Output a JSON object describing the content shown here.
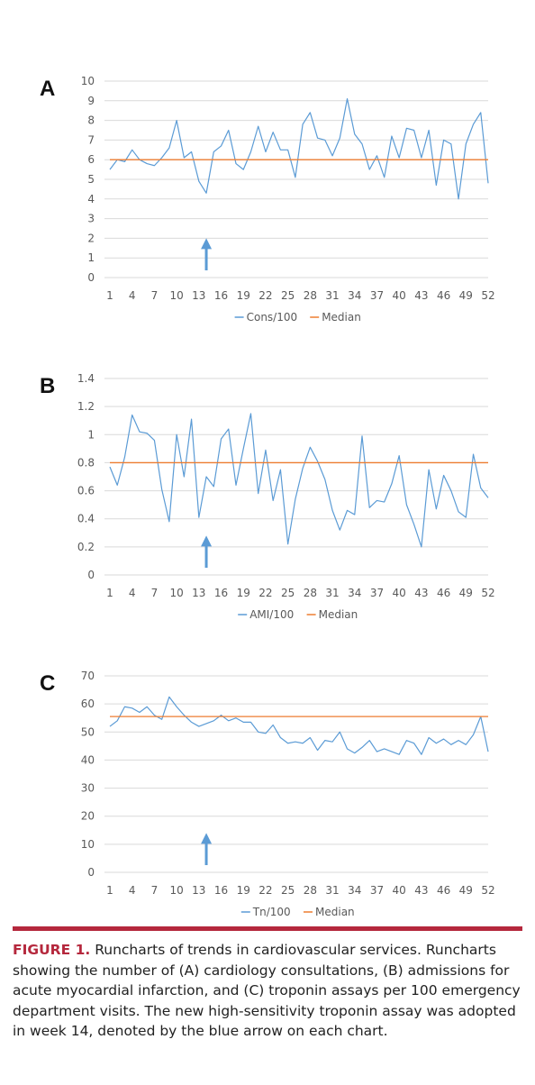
{
  "panels": [
    {
      "letter": "A",
      "chart_data": {
        "type": "line",
        "ylim": [
          0,
          10
        ],
        "yticks": [
          "0",
          "1",
          "2",
          "3",
          "4",
          "5",
          "6",
          "7",
          "8",
          "9",
          "10"
        ],
        "xtick_labels": [
          "1",
          "4",
          "7",
          "10",
          "13",
          "16",
          "19",
          "22",
          "25",
          "28",
          "31",
          "34",
          "37",
          "40",
          "43",
          "46",
          "49",
          "52"
        ],
        "x": [
          1,
          2,
          3,
          4,
          5,
          6,
          7,
          8,
          9,
          10,
          11,
          12,
          13,
          14,
          15,
          16,
          17,
          18,
          19,
          20,
          21,
          22,
          23,
          24,
          25,
          26,
          27,
          28,
          29,
          30,
          31,
          32,
          33,
          34,
          35,
          36,
          37,
          38,
          39,
          40,
          41,
          42,
          43,
          44,
          45,
          46,
          47,
          48,
          49,
          50,
          51,
          52
        ],
        "series": [
          {
            "name": "Cons/100",
            "color": "#5b9bd5",
            "values": [
              5.5,
              6.0,
              5.9,
              6.5,
              6.0,
              5.8,
              5.7,
              6.1,
              6.6,
              8.0,
              6.1,
              6.4,
              4.9,
              4.3,
              6.4,
              6.7,
              7.5,
              5.8,
              5.5,
              6.4,
              7.7,
              6.4,
              7.4,
              6.5,
              6.5,
              5.1,
              7.8,
              8.4,
              7.1,
              7.0,
              6.2,
              7.1,
              9.1,
              7.3,
              6.8,
              5.5,
              6.2,
              5.1,
              7.2,
              6.1,
              7.6,
              7.5,
              6.1,
              7.5,
              4.7,
              7.0,
              6.8,
              4.0,
              6.8,
              7.8,
              8.4,
              4.8
            ]
          },
          {
            "name": "Median",
            "color": "#ed7d31",
            "constant": 6.0
          }
        ],
        "legend": [
          "Cons/100",
          "Median"
        ],
        "arrow_week": 14,
        "arrow_color": "#5b9bd5"
      }
    },
    {
      "letter": "B",
      "chart_data": {
        "type": "line",
        "ylim": [
          0,
          1.4
        ],
        "yticks": [
          "0",
          "0.2",
          "0.4",
          "0.6",
          "0.8",
          "1",
          "1.2",
          "1.4"
        ],
        "xtick_labels": [
          "1",
          "4",
          "7",
          "10",
          "13",
          "16",
          "19",
          "22",
          "25",
          "28",
          "31",
          "34",
          "37",
          "40",
          "43",
          "46",
          "49",
          "52"
        ],
        "x": [
          1,
          2,
          3,
          4,
          5,
          6,
          7,
          8,
          9,
          10,
          11,
          12,
          13,
          14,
          15,
          16,
          17,
          18,
          19,
          20,
          21,
          22,
          23,
          24,
          25,
          26,
          27,
          28,
          29,
          30,
          31,
          32,
          33,
          34,
          35,
          36,
          37,
          38,
          39,
          40,
          41,
          42,
          43,
          44,
          45,
          46,
          47,
          48,
          49,
          50,
          51,
          52
        ],
        "series": [
          {
            "name": "AMI/100",
            "color": "#5b9bd5",
            "values": [
              0.77,
              0.64,
              0.84,
              1.14,
              1.02,
              1.01,
              0.96,
              0.61,
              0.38,
              1.0,
              0.7,
              1.11,
              0.41,
              0.7,
              0.63,
              0.97,
              1.04,
              0.64,
              0.9,
              1.15,
              0.58,
              0.89,
              0.53,
              0.75,
              0.22,
              0.54,
              0.76,
              0.91,
              0.81,
              0.68,
              0.46,
              0.32,
              0.46,
              0.43,
              0.99,
              0.48,
              0.53,
              0.52,
              0.65,
              0.85,
              0.5,
              0.36,
              0.2,
              0.75,
              0.47,
              0.71,
              0.6,
              0.45,
              0.41,
              0.86,
              0.62,
              0.55
            ]
          },
          {
            "name": "Median",
            "color": "#ed7d31",
            "constant": 0.8
          }
        ],
        "legend": [
          "AMI/100",
          "Median"
        ],
        "arrow_week": 14,
        "arrow_color": "#5b9bd5"
      }
    },
    {
      "letter": "C",
      "chart_data": {
        "type": "line",
        "ylim": [
          0,
          70
        ],
        "yticks": [
          "0",
          "10",
          "20",
          "30",
          "40",
          "50",
          "60",
          "70"
        ],
        "xtick_labels": [
          "1",
          "4",
          "7",
          "10",
          "13",
          "16",
          "19",
          "22",
          "25",
          "28",
          "31",
          "34",
          "37",
          "40",
          "43",
          "46",
          "49",
          "52"
        ],
        "x": [
          1,
          2,
          3,
          4,
          5,
          6,
          7,
          8,
          9,
          10,
          11,
          12,
          13,
          14,
          15,
          16,
          17,
          18,
          19,
          20,
          21,
          22,
          23,
          24,
          25,
          26,
          27,
          28,
          29,
          30,
          31,
          32,
          33,
          34,
          35,
          36,
          37,
          38,
          39,
          40,
          41,
          42,
          43,
          44,
          45,
          46,
          47,
          48,
          49,
          50,
          51,
          52
        ],
        "series": [
          {
            "name": "Tn/100",
            "color": "#5b9bd5",
            "values": [
              52,
              54,
              59,
              58.5,
              57,
              59,
              56,
              54.5,
              62.5,
              59,
              56,
              53.5,
              52,
              53,
              54,
              56,
              54,
              55,
              53.5,
              53.5,
              50,
              49.5,
              52.5,
              48,
              46,
              46.5,
              46,
              48,
              43.5,
              47,
              46.5,
              50,
              44,
              42.5,
              44.5,
              47,
              43,
              44,
              43,
              42,
              47,
              46,
              42,
              48,
              46,
              47.5,
              45.5,
              47,
              45.5,
              49,
              55.5,
              43
            ]
          },
          {
            "name": "Median",
            "color": "#ed7d31",
            "constant": 55.5
          }
        ],
        "legend": [
          "Tn/100",
          "Median"
        ],
        "arrow_week": 14,
        "arrow_color": "#5b9bd5"
      }
    }
  ],
  "caption": {
    "label": "FIGURE 1.",
    "text": " Runcharts of trends in cardiovascular services. Runcharts showing the number of (A) cardiology consultations, (B) admissions for acute myocardial infarction, and (C) troponin assays per 100 emergency department visits. The new high-sensitivity troponin assay was adopted in week 14, denoted by the blue arrow on each chart."
  }
}
